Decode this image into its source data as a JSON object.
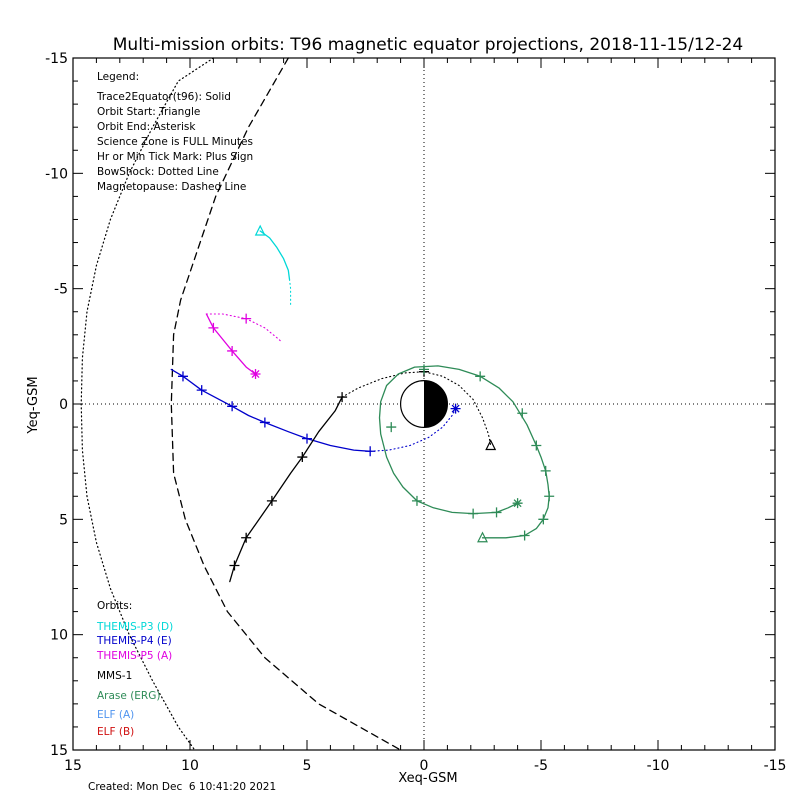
{
  "chart_data": {
    "type": "line",
    "title": "Multi-mission orbits: T96 magnetic equator projections, 2018-11-15/12-24",
    "xlabel": "Xeq-GSM",
    "ylabel": "Yeq-GSM",
    "xlim": [
      15,
      -15
    ],
    "ylim": [
      -15,
      15
    ],
    "x_ticks": [
      "15",
      "10",
      "5",
      "0",
      "-5",
      "-10",
      "-15"
    ],
    "y_ticks": [
      "-15",
      "-10",
      "-5",
      "0",
      "5",
      "10",
      "15"
    ],
    "grid": false,
    "legend": {
      "heading": "Legend:",
      "items": [
        "Trace2Equator(t96): Solid",
        "Orbit Start: Triangle",
        "Orbit End: Asterisk",
        "Science Zone is FULL Minutes",
        "Hr or Min Tick Mark: Plus Sign",
        "BowShock: Dotted Line",
        "Magnetopause: Dashed Line"
      ]
    },
    "orbits_legend": {
      "heading": "Orbits:",
      "items": [
        {
          "label": "THEMIS-P3 (D)",
          "color": "#00d8d8"
        },
        {
          "label": "THEMIS-P4 (E)",
          "color": "#0000cc"
        },
        {
          "label": "THEMIS-P5 (A)",
          "color": "#e000e0"
        },
        {
          "label": "MMS-1",
          "color": "#000000"
        },
        {
          "label": "Arase (ERG)",
          "color": "#2e8b57"
        },
        {
          "label": "ELF (A)",
          "color": "#4f94ef"
        },
        {
          "label": "ELF (B)",
          "color": "#d01010"
        }
      ]
    },
    "created": "Created: Mon Dec  6 10:41:20 2021",
    "earth_radius": 1,
    "boundaries": {
      "bowshock": [
        [
          9,
          -15
        ],
        [
          10.5,
          -14
        ],
        [
          11.6,
          -12
        ],
        [
          12.6,
          -10
        ],
        [
          13.4,
          -8
        ],
        [
          14,
          -6
        ],
        [
          14.4,
          -4
        ],
        [
          14.6,
          -2
        ],
        [
          14.65,
          0
        ],
        [
          14.6,
          2
        ],
        [
          14.4,
          4
        ],
        [
          14,
          6
        ],
        [
          13.4,
          8
        ],
        [
          12.6,
          10
        ],
        [
          11.6,
          12
        ],
        [
          10.5,
          14
        ],
        [
          9.8,
          15
        ]
      ],
      "magnetopause": [
        [
          5.8,
          -15
        ],
        [
          7.5,
          -12
        ],
        [
          8.9,
          -9
        ],
        [
          9.9,
          -6
        ],
        [
          10.4,
          -4.5
        ],
        [
          10.7,
          -3
        ],
        [
          10.8,
          0
        ],
        [
          10.7,
          3
        ],
        [
          10.2,
          5
        ],
        [
          9.4,
          7
        ],
        [
          8.4,
          9
        ],
        [
          6.8,
          11
        ],
        [
          4.5,
          13
        ],
        [
          1,
          15
        ]
      ]
    },
    "series": [
      {
        "name": "THEMIS-P3 (D)",
        "color": "#00d8d8",
        "solid": [
          [
            7,
            -7.5
          ],
          [
            6.6,
            -7.2
          ],
          [
            6.3,
            -6.8
          ],
          [
            6.0,
            -6.3
          ],
          [
            5.8,
            -5.8
          ],
          [
            5.75,
            -5.4
          ]
        ],
        "dotted": [
          [
            5.75,
            -5.4
          ],
          [
            5.7,
            -5.0
          ],
          [
            5.7,
            -4.3
          ]
        ],
        "plus": [],
        "start": [
          7,
          -7.5
        ],
        "end": null
      },
      {
        "name": "THEMIS-P4 (E)",
        "color": "#0000cc",
        "solid": [
          [
            10.8,
            -1.5
          ],
          [
            10.3,
            -1.2
          ],
          [
            9.5,
            -0.6
          ],
          [
            8.2,
            0.1
          ],
          [
            7.5,
            0.5
          ],
          [
            6.8,
            0.8
          ],
          [
            5.8,
            1.2
          ],
          [
            5,
            1.5
          ],
          [
            4,
            1.8
          ],
          [
            3,
            2.0
          ],
          [
            2.3,
            2.05
          ]
        ],
        "dotted": [
          [
            2.3,
            2.05
          ],
          [
            1.5,
            2.0
          ],
          [
            0.6,
            1.8
          ],
          [
            -0.2,
            1.45
          ],
          [
            -0.8,
            1.0
          ],
          [
            -1.2,
            0.5
          ],
          [
            -1.35,
            0.2
          ]
        ],
        "plus": [
          [
            10.3,
            -1.2
          ],
          [
            9.5,
            -0.6
          ],
          [
            8.2,
            0.1
          ],
          [
            6.8,
            0.8
          ],
          [
            5,
            1.5
          ],
          [
            2.3,
            2.05
          ]
        ],
        "start": null,
        "end": [
          -1.35,
          0.2
        ]
      },
      {
        "name": "THEMIS-P5 (A)",
        "color": "#e000e0",
        "solid": [
          [
            9.3,
            -3.9
          ],
          [
            9.0,
            -3.3
          ],
          [
            8.2,
            -2.3
          ],
          [
            7.6,
            -1.6
          ],
          [
            7.2,
            -1.3
          ]
        ],
        "dotted": [
          [
            9.3,
            -3.9
          ],
          [
            8.6,
            -3.9
          ],
          [
            7.6,
            -3.7
          ],
          [
            6.8,
            -3.3
          ],
          [
            6.2,
            -2.8
          ],
          [
            6.1,
            -2.7
          ]
        ],
        "plus": [
          [
            9.0,
            -3.3
          ],
          [
            8.2,
            -2.3
          ],
          [
            7.6,
            -3.7
          ]
        ],
        "start": null,
        "end": [
          7.2,
          -1.3
        ]
      },
      {
        "name": "MMS-1",
        "color": "#000000",
        "solid": [
          [
            8.3,
            7.7
          ],
          [
            8.1,
            7.0
          ],
          [
            7.6,
            5.8
          ],
          [
            6.5,
            4.2
          ],
          [
            5.7,
            3.0
          ],
          [
            5.2,
            2.3
          ],
          [
            4.5,
            1.2
          ],
          [
            3.8,
            0.3
          ],
          [
            3.5,
            -0.3
          ]
        ],
        "dotted": [
          [
            3.5,
            -0.3
          ],
          [
            2.8,
            -0.7
          ],
          [
            1.8,
            -1.1
          ],
          [
            0.8,
            -1.35
          ],
          [
            0,
            -1.4
          ],
          [
            -0.8,
            -1.2
          ],
          [
            -1.5,
            -0.8
          ],
          [
            -2.1,
            -0.2
          ],
          [
            -2.5,
            0.6
          ],
          [
            -2.75,
            1.3
          ],
          [
            -2.85,
            1.8
          ]
        ],
        "plus": [
          [
            8.1,
            7.0
          ],
          [
            7.6,
            5.8
          ],
          [
            6.5,
            4.2
          ],
          [
            5.2,
            2.3
          ],
          [
            3.5,
            -0.3
          ],
          [
            0,
            -1.4
          ]
        ],
        "start": [
          -2.85,
          1.8
        ],
        "end": null
      },
      {
        "name": "Arase (ERG)",
        "color": "#2e8b57",
        "solid": [
          [
            -2.5,
            5.8
          ],
          [
            -3.5,
            5.8
          ],
          [
            -4.3,
            5.7
          ],
          [
            -4.8,
            5.4
          ],
          [
            -5.1,
            5.0
          ],
          [
            -5.3,
            4.5
          ],
          [
            -5.35,
            4.0
          ],
          [
            -5.3,
            3.5
          ],
          [
            -5.2,
            2.9
          ],
          [
            -5.0,
            2.3
          ],
          [
            -4.8,
            1.8
          ],
          [
            -4.4,
            0.9
          ],
          [
            -3.8,
            -0.1
          ],
          [
            -3.2,
            -0.7
          ],
          [
            -2.4,
            -1.2
          ],
          [
            -1.5,
            -1.5
          ],
          [
            -0.6,
            -1.65
          ],
          [
            0.4,
            -1.6
          ],
          [
            1.1,
            -1.3
          ],
          [
            1.6,
            -0.8
          ],
          [
            1.85,
            -0.1
          ],
          [
            1.9,
            0.6
          ],
          [
            1.85,
            1.3
          ],
          [
            1.6,
            2.3
          ],
          [
            1.3,
            3.0
          ],
          [
            0.9,
            3.6
          ],
          [
            0.3,
            4.2
          ],
          [
            -0.4,
            4.5
          ],
          [
            -1.2,
            4.7
          ],
          [
            -2.1,
            4.75
          ],
          [
            -3.1,
            4.7
          ],
          [
            -3.6,
            4.5
          ],
          [
            -4.0,
            4.3
          ]
        ],
        "dotted": [],
        "plus": [
          [
            -4.3,
            5.7
          ],
          [
            -5.1,
            5.0
          ],
          [
            -5.35,
            4.0
          ],
          [
            -5.2,
            2.9
          ],
          [
            -4.8,
            1.8
          ],
          [
            -4.2,
            0.4
          ],
          [
            -2.4,
            -1.2
          ],
          [
            0,
            -1.5
          ],
          [
            1.4,
            1.0
          ],
          [
            0.3,
            4.2
          ],
          [
            -2.1,
            4.75
          ],
          [
            -3.1,
            4.7
          ]
        ],
        "start": [
          -2.5,
          5.8
        ],
        "end": [
          -4.0,
          4.3
        ]
      }
    ]
  }
}
